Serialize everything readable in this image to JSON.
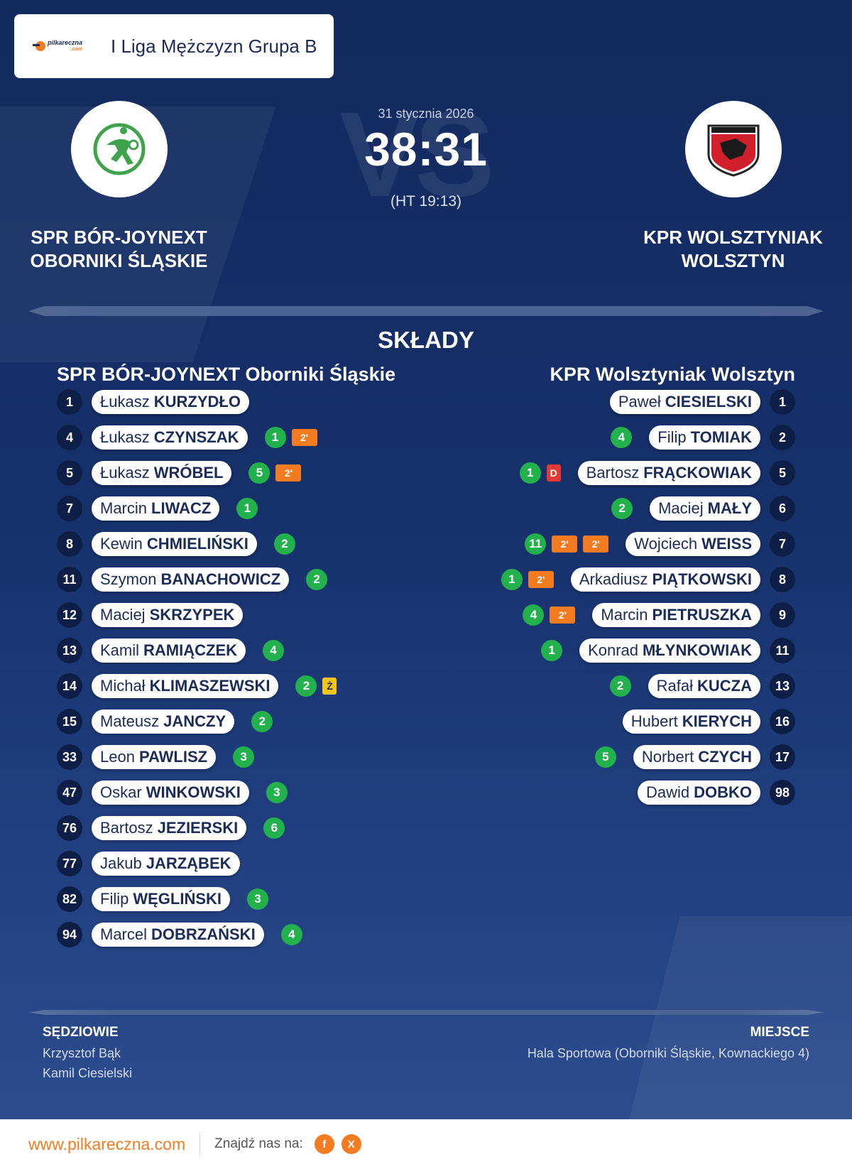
{
  "league": {
    "name": "I Liga Mężczyzn Grupa B",
    "brand_text": "pilkareczna",
    "brand_sub": ".com"
  },
  "match": {
    "date": "31 stycznia 2026",
    "score": "38:31",
    "halftime": "(HT 19:13)",
    "vs_watermark": "VS",
    "home": {
      "name_line1": "SPR BÓR-JOYNEXT",
      "name_line2": "OBORNIKI ŚLĄSKIE",
      "logo_icon": "handball-player-icon",
      "logo_color": "#3fa34d"
    },
    "away": {
      "name_line1": "KPR WOLSZTYNIAK",
      "name_line2": "WOLSZTYN",
      "logo_icon": "club-crest-icon",
      "logo_color": "#d11f2b"
    }
  },
  "squads": {
    "title": "SKŁADY",
    "home_title": "SPR BÓR-JOYNEXT Oborniki Śląskie",
    "away_title": "KPR Wolsztyniak Wolsztyn",
    "home": [
      {
        "number": "1",
        "first": "Łukasz",
        "last": "KURZYDŁO",
        "goals": "",
        "cards": []
      },
      {
        "number": "4",
        "first": "Łukasz",
        "last": "CZYNSZAK",
        "goals": "1",
        "cards": [
          "2'"
        ]
      },
      {
        "number": "5",
        "first": "Łukasz",
        "last": "WRÓBEL",
        "goals": "5",
        "cards": [
          "2'"
        ]
      },
      {
        "number": "7",
        "first": "Marcin",
        "last": "LIWACZ",
        "goals": "1",
        "cards": []
      },
      {
        "number": "8",
        "first": "Kewin",
        "last": "CHMIELIŃSKI",
        "goals": "2",
        "cards": []
      },
      {
        "number": "11",
        "first": "Szymon",
        "last": "BANACHOWICZ",
        "goals": "2",
        "cards": []
      },
      {
        "number": "12",
        "first": "Maciej",
        "last": "SKRZYPEK",
        "goals": "",
        "cards": []
      },
      {
        "number": "13",
        "first": "Kamil",
        "last": "RAMIĄCZEK",
        "goals": "4",
        "cards": []
      },
      {
        "number": "14",
        "first": "Michał",
        "last": "KLIMASZEWSKI",
        "goals": "2",
        "cards": [
          "Ż"
        ]
      },
      {
        "number": "15",
        "first": "Mateusz",
        "last": "JANCZY",
        "goals": "2",
        "cards": []
      },
      {
        "number": "33",
        "first": "Leon",
        "last": "PAWLISZ",
        "goals": "3",
        "cards": []
      },
      {
        "number": "47",
        "first": "Oskar",
        "last": "WINKOWSKI",
        "goals": "3",
        "cards": []
      },
      {
        "number": "76",
        "first": "Bartosz",
        "last": "JEZIERSKI",
        "goals": "6",
        "cards": []
      },
      {
        "number": "77",
        "first": "Jakub",
        "last": "JARZĄBEK",
        "goals": "",
        "cards": []
      },
      {
        "number": "82",
        "first": "Filip",
        "last": "WĘGLIŃSKI",
        "goals": "3",
        "cards": []
      },
      {
        "number": "94",
        "first": "Marcel",
        "last": "DOBRZAŃSKI",
        "goals": "4",
        "cards": []
      }
    ],
    "away": [
      {
        "number": "1",
        "first": "Paweł",
        "last": "CIESIELSKI",
        "goals": "",
        "cards": []
      },
      {
        "number": "2",
        "first": "Filip",
        "last": "TOMIAK",
        "goals": "4",
        "cards": []
      },
      {
        "number": "5",
        "first": "Bartosz",
        "last": "FRĄCKOWIAK",
        "goals": "1",
        "cards": [
          "D"
        ]
      },
      {
        "number": "6",
        "first": "Maciej",
        "last": "MAŁY",
        "goals": "2",
        "cards": []
      },
      {
        "number": "7",
        "first": "Wojciech",
        "last": "WEISS",
        "goals": "11",
        "cards": [
          "2'",
          "2'"
        ]
      },
      {
        "number": "8",
        "first": "Arkadiusz",
        "last": "PIĄTKOWSKI",
        "goals": "1",
        "cards": [
          "2'"
        ]
      },
      {
        "number": "9",
        "first": "Marcin",
        "last": "PIETRUSZKA",
        "goals": "4",
        "cards": [
          "2'"
        ]
      },
      {
        "number": "11",
        "first": "Konrad",
        "last": "MŁYNKOWIAK",
        "goals": "1",
        "cards": []
      },
      {
        "number": "13",
        "first": "Rafał",
        "last": "KUCZA",
        "goals": "2",
        "cards": []
      },
      {
        "number": "16",
        "first": "Hubert",
        "last": "KIERYCH",
        "goals": "",
        "cards": []
      },
      {
        "number": "17",
        "first": "Norbert",
        "last": "CZYCH",
        "goals": "5",
        "cards": []
      },
      {
        "number": "98",
        "first": "Dawid",
        "last": "DOBKO",
        "goals": "",
        "cards": []
      }
    ]
  },
  "officials": {
    "referees_label": "SĘDZIOWIE",
    "referees": [
      "Krzysztof Bąk",
      "Kamil Ciesielski"
    ],
    "venue_label": "MIEJSCE",
    "venue": "Hala Sportowa (Oborniki Śląskie, Kownackiego 4)"
  },
  "footer": {
    "site": "www.pilkareczna.com",
    "find_label": "Znajdź nas na:",
    "social": [
      {
        "icon": "facebook-icon",
        "glyph": "f"
      },
      {
        "icon": "x-icon",
        "glyph": "X"
      }
    ]
  },
  "colors": {
    "background": "#13285b",
    "accent": "#f47b20",
    "goal_badge": "#22b14c",
    "two_min": "#f47b20",
    "red_card": "#e53935",
    "yellow_card": "#f5c518"
  }
}
